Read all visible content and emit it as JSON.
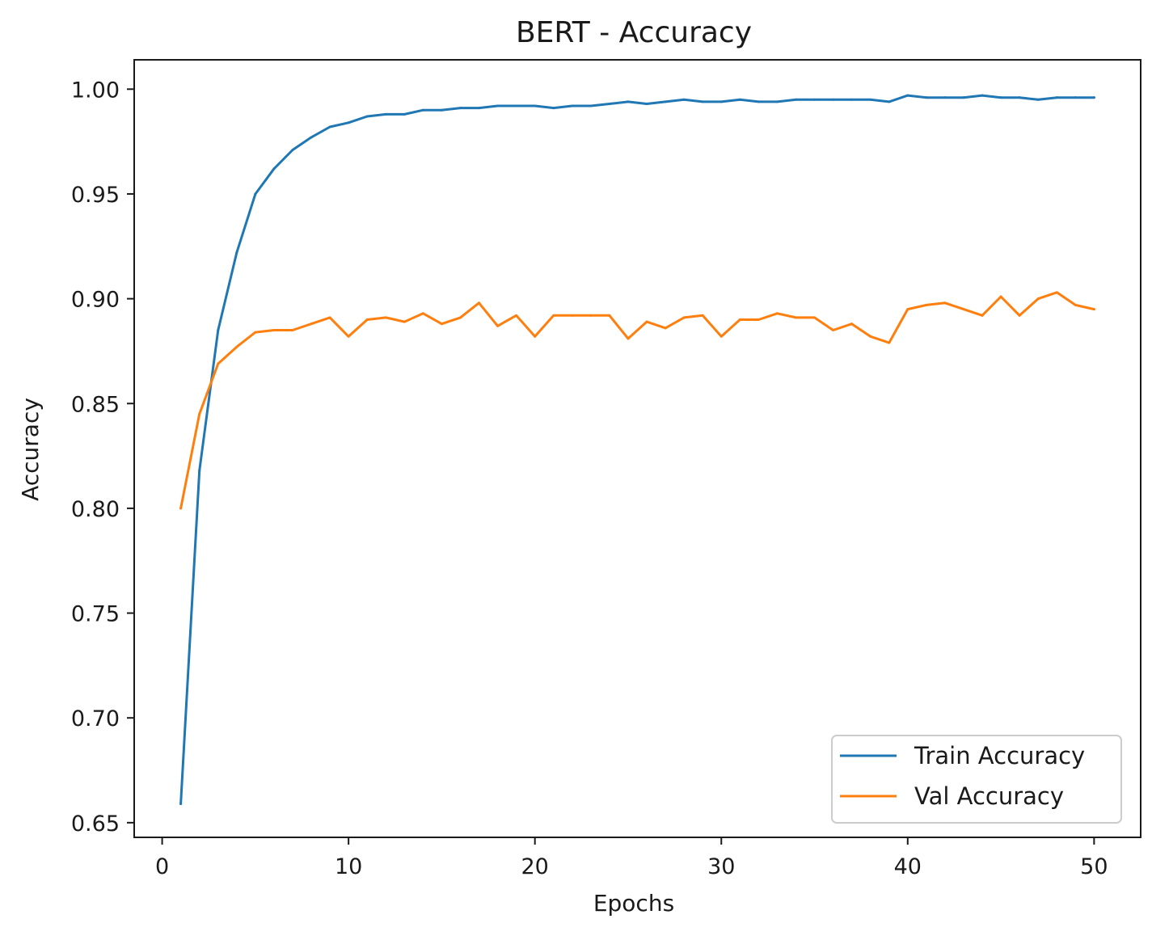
{
  "chart_data": {
    "type": "line",
    "title": "BERT - Accuracy",
    "xlabel": "Epochs",
    "ylabel": "Accuracy",
    "xlim": [
      -1.5,
      52.5
    ],
    "ylim": [
      0.643,
      1.014
    ],
    "xticks": [
      0,
      10,
      20,
      30,
      40,
      50
    ],
    "xtick_labels": [
      "0",
      "10",
      "20",
      "30",
      "40",
      "50"
    ],
    "yticks": [
      0.65,
      0.7,
      0.75,
      0.8,
      0.85,
      0.9,
      0.95,
      1.0
    ],
    "ytick_labels": [
      "0.65",
      "0.70",
      "0.75",
      "0.80",
      "0.85",
      "0.90",
      "0.95",
      "1.00"
    ],
    "grid": false,
    "legend_position": "bottom-right",
    "x": [
      1,
      2,
      3,
      4,
      5,
      6,
      7,
      8,
      9,
      10,
      11,
      12,
      13,
      14,
      15,
      16,
      17,
      18,
      19,
      20,
      21,
      22,
      23,
      24,
      25,
      26,
      27,
      28,
      29,
      30,
      31,
      32,
      33,
      34,
      35,
      36,
      37,
      38,
      39,
      40,
      41,
      42,
      43,
      44,
      45,
      46,
      47,
      48,
      49,
      50
    ],
    "series": [
      {
        "name": "Train Accuracy",
        "color": "#1f77b4",
        "values": [
          0.659,
          0.818,
          0.885,
          0.922,
          0.95,
          0.962,
          0.971,
          0.977,
          0.982,
          0.984,
          0.987,
          0.988,
          0.988,
          0.99,
          0.99,
          0.991,
          0.991,
          0.992,
          0.992,
          0.992,
          0.991,
          0.992,
          0.992,
          0.993,
          0.994,
          0.993,
          0.994,
          0.995,
          0.994,
          0.994,
          0.995,
          0.994,
          0.994,
          0.995,
          0.995,
          0.995,
          0.995,
          0.995,
          0.994,
          0.997,
          0.996,
          0.996,
          0.996,
          0.997,
          0.996,
          0.996,
          0.995,
          0.996,
          0.996,
          0.996
        ]
      },
      {
        "name": "Val Accuracy",
        "color": "#ff7f0e",
        "values": [
          0.8,
          0.845,
          0.869,
          0.877,
          0.884,
          0.885,
          0.885,
          0.888,
          0.891,
          0.882,
          0.89,
          0.891,
          0.889,
          0.893,
          0.888,
          0.891,
          0.898,
          0.887,
          0.892,
          0.882,
          0.892,
          0.892,
          0.892,
          0.892,
          0.881,
          0.889,
          0.886,
          0.891,
          0.892,
          0.882,
          0.89,
          0.89,
          0.893,
          0.891,
          0.891,
          0.885,
          0.888,
          0.882,
          0.879,
          0.895,
          0.897,
          0.898,
          0.895,
          0.892,
          0.901,
          0.892,
          0.9,
          0.903,
          0.897,
          0.895
        ]
      }
    ]
  }
}
